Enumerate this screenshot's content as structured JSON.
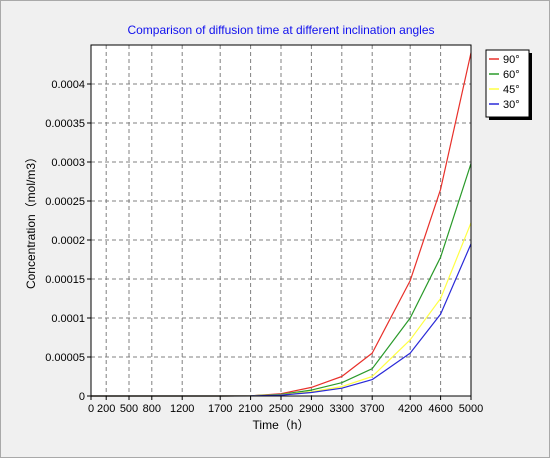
{
  "chart_data": {
    "type": "line",
    "title": "Comparison of diffusion time at different inclination angles",
    "xlabel": "Time（h）",
    "ylabel": "Concentration（mol/m3）",
    "xlim": [
      0,
      5000
    ],
    "ylim": [
      0,
      0.00045
    ],
    "x_ticks": [
      0,
      200,
      500,
      800,
      1200,
      1700,
      2100,
      2500,
      2900,
      3300,
      3700,
      4200,
      4600,
      5000
    ],
    "y_ticks": [
      0,
      5e-05,
      0.0001,
      0.00015,
      0.0002,
      0.00025,
      0.0003,
      0.00035,
      0.0004
    ],
    "y_tick_labels": [
      "0",
      "0.00005",
      "0.0001",
      "0.00015",
      "0.0002",
      "0.00025",
      "0.0003",
      "0.00035",
      "0.0004"
    ],
    "grid": true,
    "legend_position": "top-right, outside plot",
    "x": [
      0,
      200,
      500,
      800,
      1200,
      1700,
      2100,
      2500,
      2900,
      3300,
      3700,
      4200,
      4600,
      5000
    ],
    "series": [
      {
        "name": "90°",
        "color": "#e8302a",
        "values": [
          0,
          0,
          0,
          0,
          0,
          0,
          3e-07,
          3e-06,
          1.1e-05,
          2.5e-05,
          5.5e-05,
          0.000148,
          0.000265,
          0.00044
        ]
      },
      {
        "name": "60°",
        "color": "#2a9a2a",
        "values": [
          0,
          0,
          0,
          0,
          0,
          0,
          2e-07,
          2e-06,
          7.5e-06,
          1.7e-05,
          3.5e-05,
          0.0001,
          0.000178,
          0.000298
        ]
      },
      {
        "name": "45°",
        "color": "#ffff44",
        "values": [
          0,
          0,
          0,
          0,
          0,
          0,
          1e-07,
          1.5e-06,
          5.5e-06,
          1.2e-05,
          2.5e-05,
          7.2e-05,
          0.000125,
          0.000222
        ]
      },
      {
        "name": "30°",
        "color": "#2a2ad8",
        "values": [
          0,
          0,
          0,
          0,
          0,
          0,
          1e-07,
          1.2e-06,
          4.5e-06,
          1e-05,
          2.1e-05,
          5.5e-05,
          0.000105,
          0.000195
        ]
      }
    ]
  }
}
